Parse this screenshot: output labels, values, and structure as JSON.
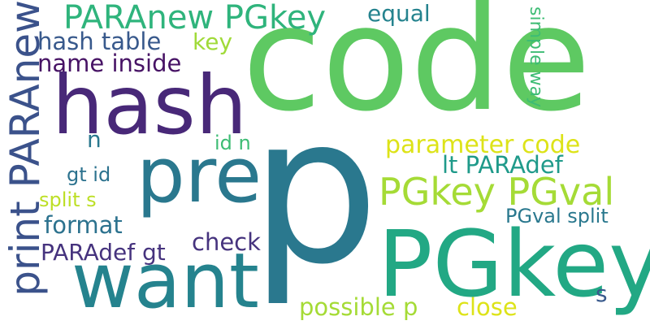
{
  "words": [
    {
      "text": "code",
      "color": "#5ec962"
    },
    {
      "text": "p",
      "color": "#2a788e"
    },
    {
      "text": "PGkey",
      "color": "#22a884"
    },
    {
      "text": "hash",
      "color": "#482878"
    },
    {
      "text": "pre",
      "color": "#2a788e"
    },
    {
      "text": "want",
      "color": "#25838e"
    },
    {
      "text": "print PARAnew",
      "color": "#3b528b"
    },
    {
      "text": "PARAnew PGkey",
      "color": "#2fb47c"
    },
    {
      "text": "PGkey PGval",
      "color": "#a5db36"
    },
    {
      "text": "hash table",
      "color": "#38598c"
    },
    {
      "text": "name inside",
      "color": "#471365"
    },
    {
      "text": "equal",
      "color": "#25838e"
    },
    {
      "text": "key",
      "color": "#a0da39"
    },
    {
      "text": "simple way",
      "color": "#3dbc74"
    },
    {
      "text": "parameter code",
      "color": "#dde318"
    },
    {
      "text": "lt PARAdef",
      "color": "#1f9a8a"
    },
    {
      "text": "n",
      "color": "#2a788e"
    },
    {
      "text": "id n",
      "color": "#3dbc74"
    },
    {
      "text": "gt id",
      "color": "#2c728e"
    },
    {
      "text": "split s",
      "color": "#bddf26"
    },
    {
      "text": "format",
      "color": "#2c728e"
    },
    {
      "text": "check",
      "color": "#46337e"
    },
    {
      "text": "PARAdef gt",
      "color": "#46337e"
    },
    {
      "text": "PGval split",
      "color": "#2a788e"
    },
    {
      "text": "s",
      "color": "#38598c"
    },
    {
      "text": "possible p",
      "color": "#a5db36"
    },
    {
      "text": "close",
      "color": "#dde318"
    }
  ]
}
